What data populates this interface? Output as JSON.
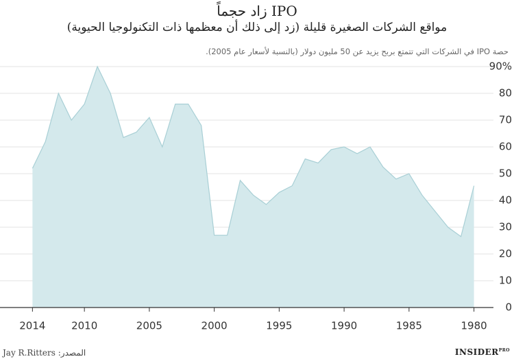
{
  "chart_data": {
    "type": "area",
    "title": "IPO زاد حجماً",
    "subtitle": "مواقع الشركات الصغيرة قليلة (زد إلى ذلك أن معظمها ذات التكنولوجيا الحيوية)",
    "y_label": "حصة IPO في الشركات التي تتمتع بربح يزيد عن 50 مليون دولار (بالنسبة لأسعار عام 2005).",
    "source": "المصدر: Jay R.Ritters",
    "brand": "INSIDER",
    "brand_suffix": "PRO",
    "x": [
      2014,
      2013,
      2012,
      2011,
      2010,
      2009,
      2008,
      2007,
      2006,
      2005,
      2004,
      2003,
      2002,
      2001,
      2000,
      1999,
      1998,
      1997,
      1996,
      1995,
      1994,
      1993,
      1992,
      1991,
      1990,
      1989,
      1988,
      1987,
      1986,
      1985,
      1984,
      1983,
      1982,
      1981,
      1980
    ],
    "values": [
      52,
      62,
      80,
      70,
      76,
      90,
      80,
      63.5,
      65.5,
      71,
      60,
      76,
      76,
      68,
      27,
      27,
      47.5,
      42,
      38.5,
      43,
      45.5,
      55.5,
      54,
      59,
      60,
      57.5,
      60,
      52.5,
      48,
      50,
      42,
      36,
      30,
      26.5,
      45.5
    ],
    "color": "#d4e9ec",
    "line_color": "#a8cfd5",
    "xlim": [
      2016.5,
      1978.5
    ],
    "xticks": [
      2014,
      2010,
      2005,
      2000,
      1995,
      1990,
      1985,
      1980
    ],
    "ylim": [
      0,
      90
    ],
    "yticks": [
      0,
      10,
      20,
      30,
      40,
      50,
      60,
      70,
      80,
      {
        "value": 90,
        "label": "90%"
      }
    ],
    "grid": true
  }
}
